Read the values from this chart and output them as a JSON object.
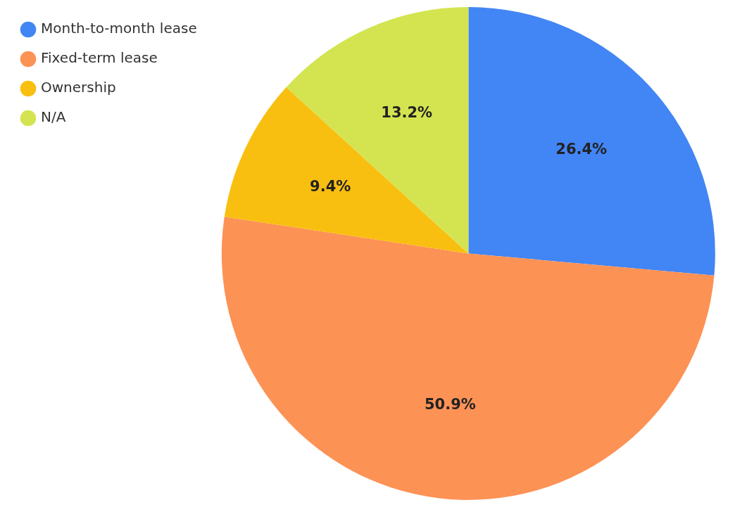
{
  "chart_data": {
    "type": "pie",
    "categories": [
      "Month-to-month lease",
      "Fixed-term lease",
      "Ownership",
      "N/A"
    ],
    "values": [
      26.4,
      50.9,
      9.4,
      13.2
    ],
    "colors": [
      "#4285f4",
      "#fd9255",
      "#f9bf10",
      "#d4e451"
    ],
    "value_labels": [
      "26.4%",
      "50.9%",
      "9.4%",
      "13.2%"
    ],
    "legend": "top left"
  }
}
